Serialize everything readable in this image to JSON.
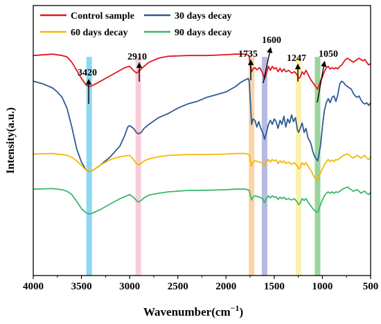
{
  "chart_data": {
    "type": "line",
    "title": "",
    "xlabel": "Wavenumber",
    "xlabel_unit": "(cm",
    "xlabel_exp": "−1",
    "xlabel_close": ")",
    "ylabel": "Intensity(a.u.)",
    "xlim": [
      4000,
      500
    ],
    "x_reversed": true,
    "x_ticks": [
      "4000",
      "3500",
      "3000",
      "2500",
      "2000",
      "1500",
      "1000",
      "500"
    ],
    "y_ticks_shown": false,
    "grid": false,
    "legend_position": "top-left",
    "series": [
      {
        "name": "Control sample",
        "color": "#e3141c",
        "x": [
          4000,
          3800,
          3700,
          3650,
          3600,
          3550,
          3500,
          3450,
          3420,
          3380,
          3300,
          3200,
          3100,
          3050,
          3000,
          2960,
          2930,
          2910,
          2880,
          2850,
          2800,
          2700,
          2600,
          2400,
          2200,
          2000,
          1900,
          1800,
          1760,
          1750,
          1735,
          1720,
          1700,
          1680,
          1650,
          1620,
          1600,
          1580,
          1560,
          1540,
          1520,
          1500,
          1480,
          1460,
          1440,
          1420,
          1400,
          1380,
          1350,
          1320,
          1290,
          1260,
          1247,
          1230,
          1210,
          1190,
          1170,
          1150,
          1120,
          1100,
          1080,
          1060,
          1050,
          1040,
          1020,
          1000,
          980,
          960,
          940,
          920,
          900,
          880,
          860,
          840,
          820,
          800,
          780,
          760,
          740,
          720,
          700,
          680,
          660,
          640,
          620,
          600,
          580,
          560,
          540,
          520,
          500
        ],
        "y": [
          0.815,
          0.82,
          0.815,
          0.81,
          0.79,
          0.76,
          0.73,
          0.705,
          0.7,
          0.705,
          0.72,
          0.74,
          0.76,
          0.77,
          0.775,
          0.76,
          0.75,
          0.755,
          0.765,
          0.775,
          0.79,
          0.805,
          0.812,
          0.815,
          0.815,
          0.818,
          0.82,
          0.82,
          0.815,
          0.78,
          0.755,
          0.765,
          0.77,
          0.762,
          0.77,
          0.75,
          0.728,
          0.75,
          0.775,
          0.76,
          0.775,
          0.765,
          0.77,
          0.755,
          0.768,
          0.755,
          0.765,
          0.755,
          0.76,
          0.75,
          0.755,
          0.742,
          0.73,
          0.735,
          0.755,
          0.745,
          0.76,
          0.745,
          0.725,
          0.715,
          0.705,
          0.695,
          0.69,
          0.7,
          0.72,
          0.735,
          0.755,
          0.77,
          0.775,
          0.765,
          0.77,
          0.765,
          0.77,
          0.765,
          0.775,
          0.78,
          0.79,
          0.8,
          0.805,
          0.8,
          0.795,
          0.79,
          0.795,
          0.8,
          0.805,
          0.8,
          0.795,
          0.8,
          0.79,
          0.78,
          0.785
        ]
      },
      {
        "name": "30 days decay",
        "color": "#2c5a93",
        "x": [
          4000,
          3900,
          3800,
          3750,
          3700,
          3650,
          3600,
          3550,
          3500,
          3450,
          3420,
          3380,
          3300,
          3200,
          3100,
          3050,
          3020,
          3000,
          2960,
          2930,
          2910,
          2880,
          2850,
          2800,
          2700,
          2600,
          2500,
          2400,
          2300,
          2200,
          2100,
          2000,
          1950,
          1900,
          1850,
          1800,
          1770,
          1760,
          1750,
          1735,
          1720,
          1700,
          1680,
          1660,
          1640,
          1620,
          1600,
          1580,
          1560,
          1540,
          1520,
          1500,
          1480,
          1460,
          1440,
          1420,
          1400,
          1380,
          1360,
          1340,
          1320,
          1300,
          1280,
          1260,
          1247,
          1230,
          1210,
          1190,
          1170,
          1150,
          1120,
          1100,
          1080,
          1060,
          1050,
          1040,
          1020,
          1000,
          980,
          960,
          940,
          920,
          900,
          880,
          860,
          840,
          820,
          800,
          780,
          760,
          740,
          720,
          700,
          680,
          660,
          640,
          620,
          600,
          580,
          560,
          540,
          520,
          500
        ],
        "y": [
          0.72,
          0.71,
          0.695,
          0.68,
          0.66,
          0.62,
          0.55,
          0.47,
          0.42,
          0.39,
          0.385,
          0.39,
          0.41,
          0.44,
          0.48,
          0.52,
          0.55,
          0.555,
          0.545,
          0.53,
          0.525,
          0.53,
          0.545,
          0.56,
          0.585,
          0.6,
          0.62,
          0.635,
          0.645,
          0.66,
          0.67,
          0.68,
          0.69,
          0.7,
          0.715,
          0.725,
          0.73,
          0.72,
          0.66,
          0.56,
          0.58,
          0.575,
          0.55,
          0.57,
          0.545,
          0.53,
          0.505,
          0.53,
          0.56,
          0.575,
          0.56,
          0.58,
          0.57,
          0.545,
          0.575,
          0.56,
          0.59,
          0.55,
          0.58,
          0.565,
          0.595,
          0.57,
          0.585,
          0.54,
          0.53,
          0.545,
          0.565,
          0.53,
          0.545,
          0.51,
          0.49,
          0.46,
          0.44,
          0.43,
          0.425,
          0.44,
          0.48,
          0.55,
          0.61,
          0.64,
          0.655,
          0.64,
          0.66,
          0.665,
          0.645,
          0.67,
          0.71,
          0.72,
          0.715,
          0.705,
          0.7,
          0.695,
          0.69,
          0.675,
          0.665,
          0.66,
          0.665,
          0.65,
          0.64,
          0.635,
          0.64,
          0.63,
          0.64
        ]
      },
      {
        "name": "60 days decay",
        "color": "#f5b800",
        "x": [
          4000,
          3800,
          3700,
          3650,
          3600,
          3550,
          3500,
          3450,
          3420,
          3380,
          3300,
          3200,
          3100,
          3000,
          2960,
          2930,
          2910,
          2880,
          2850,
          2800,
          2700,
          2600,
          2400,
          2200,
          2000,
          1900,
          1800,
          1760,
          1750,
          1735,
          1720,
          1700,
          1650,
          1620,
          1600,
          1580,
          1560,
          1540,
          1520,
          1500,
          1480,
          1460,
          1440,
          1420,
          1400,
          1380,
          1350,
          1320,
          1290,
          1260,
          1247,
          1230,
          1210,
          1190,
          1170,
          1150,
          1120,
          1100,
          1080,
          1060,
          1050,
          1040,
          1020,
          1000,
          980,
          960,
          940,
          920,
          900,
          880,
          860,
          840,
          820,
          800,
          780,
          760,
          740,
          720,
          700,
          680,
          660,
          640,
          620,
          600,
          580,
          560,
          540,
          520,
          500
        ],
        "y": [
          0.45,
          0.452,
          0.448,
          0.445,
          0.438,
          0.425,
          0.408,
          0.39,
          0.385,
          0.39,
          0.41,
          0.43,
          0.44,
          0.445,
          0.43,
          0.415,
          0.41,
          0.415,
          0.425,
          0.432,
          0.44,
          0.445,
          0.448,
          0.448,
          0.45,
          0.452,
          0.452,
          0.448,
          0.43,
          0.405,
          0.42,
          0.425,
          0.42,
          0.415,
          0.405,
          0.42,
          0.43,
          0.42,
          0.43,
          0.425,
          0.428,
          0.415,
          0.425,
          0.418,
          0.425,
          0.415,
          0.42,
          0.412,
          0.418,
          0.405,
          0.395,
          0.4,
          0.418,
          0.41,
          0.418,
          0.405,
          0.39,
          0.375,
          0.362,
          0.355,
          0.352,
          0.36,
          0.38,
          0.395,
          0.41,
          0.42,
          0.43,
          0.422,
          0.428,
          0.422,
          0.43,
          0.428,
          0.435,
          0.44,
          0.445,
          0.448,
          0.45,
          0.445,
          0.44,
          0.435,
          0.44,
          0.445,
          0.44,
          0.435,
          0.44,
          0.445,
          0.435,
          0.43,
          0.438
        ]
      },
      {
        "name": "90 days decay",
        "color": "#3ab76a",
        "x": [
          4000,
          3800,
          3700,
          3650,
          3600,
          3550,
          3500,
          3450,
          3420,
          3380,
          3300,
          3200,
          3100,
          3000,
          2960,
          2930,
          2910,
          2880,
          2850,
          2800,
          2700,
          2600,
          2400,
          2200,
          2000,
          1900,
          1800,
          1760,
          1750,
          1735,
          1720,
          1700,
          1650,
          1620,
          1600,
          1580,
          1560,
          1540,
          1520,
          1500,
          1480,
          1460,
          1440,
          1420,
          1400,
          1380,
          1350,
          1320,
          1290,
          1260,
          1247,
          1230,
          1210,
          1190,
          1170,
          1150,
          1120,
          1100,
          1080,
          1060,
          1050,
          1040,
          1020,
          1000,
          980,
          960,
          940,
          920,
          900,
          880,
          860,
          840,
          820,
          800,
          780,
          760,
          740,
          720,
          700,
          680,
          660,
          640,
          620,
          600,
          580,
          560,
          540,
          520,
          500
        ],
        "y": [
          0.32,
          0.322,
          0.318,
          0.312,
          0.3,
          0.275,
          0.248,
          0.232,
          0.228,
          0.232,
          0.245,
          0.265,
          0.285,
          0.3,
          0.29,
          0.278,
          0.272,
          0.278,
          0.288,
          0.298,
          0.305,
          0.31,
          0.315,
          0.316,
          0.318,
          0.32,
          0.32,
          0.316,
          0.3,
          0.28,
          0.29,
          0.295,
          0.29,
          0.284,
          0.27,
          0.285,
          0.295,
          0.288,
          0.295,
          0.29,
          0.292,
          0.282,
          0.29,
          0.285,
          0.29,
          0.282,
          0.285,
          0.28,
          0.284,
          0.272,
          0.262,
          0.268,
          0.285,
          0.278,
          0.285,
          0.272,
          0.258,
          0.248,
          0.24,
          0.236,
          0.235,
          0.242,
          0.262,
          0.28,
          0.295,
          0.305,
          0.31,
          0.305,
          0.31,
          0.305,
          0.31,
          0.308,
          0.312,
          0.318,
          0.322,
          0.325,
          0.328,
          0.322,
          0.318,
          0.312,
          0.315,
          0.318,
          0.312,
          0.305,
          0.31,
          0.312,
          0.305,
          0.3,
          0.308
        ]
      }
    ],
    "bands": [
      {
        "x": 3420,
        "label": "3420",
        "color": "#7fd3f0"
      },
      {
        "x": 2910,
        "label": "2910",
        "color": "#f6c6d4"
      },
      {
        "x": 1735,
        "label": "1735",
        "color": "#f9cf9a"
      },
      {
        "x": 1600,
        "label": "1600",
        "color": "#aeb4de"
      },
      {
        "x": 1247,
        "label": "1247",
        "color": "#fbf0a6"
      },
      {
        "x": 1050,
        "label": "1050",
        "color": "#8fcf8f"
      }
    ]
  }
}
